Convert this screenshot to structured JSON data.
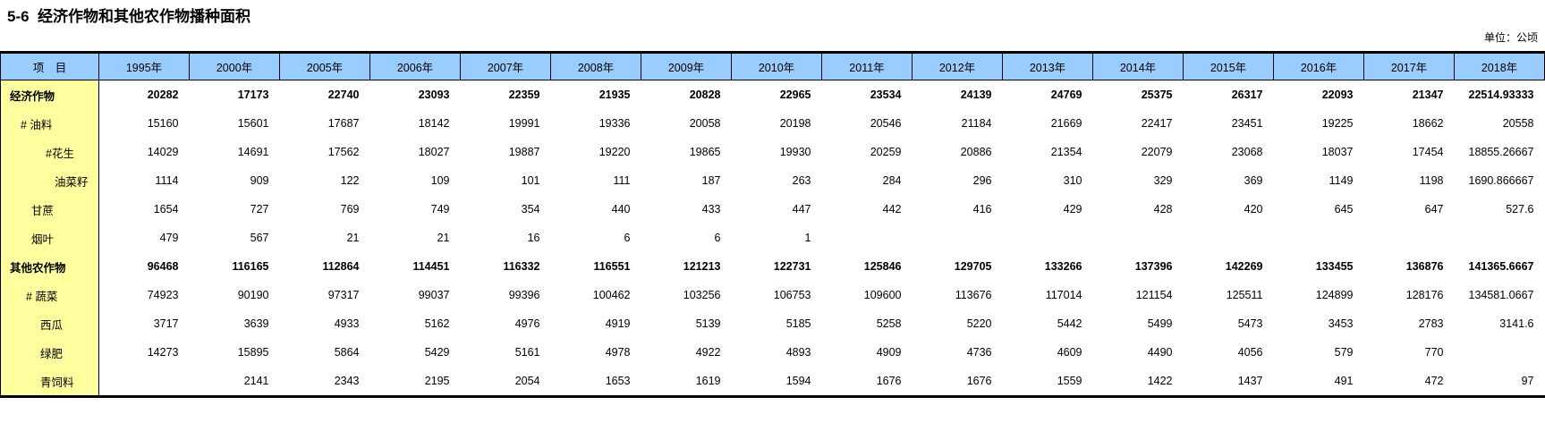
{
  "page": {
    "title": "5-6  经济作物和其他农作物播种面积",
    "unit_label": "单位：公顷"
  },
  "colors": {
    "header_bg": "#99CCFF",
    "label_col_bg": "#FFFFA0",
    "border": "#000000"
  },
  "table": {
    "item_header": "项　目",
    "years": [
      "1995年",
      "2000年",
      "2005年",
      "2006年",
      "2007年",
      "2008年",
      "2009年",
      "2010年",
      "2011年",
      "2012年",
      "2013年",
      "2014年",
      "2015年",
      "2016年",
      "2017年",
      "2018年"
    ],
    "rows": [
      {
        "label": "经济作物",
        "bold": true,
        "indent": 10,
        "values": [
          "20282",
          "17173",
          "22740",
          "23093",
          "22359",
          "21935",
          "20828",
          "22965",
          "23534",
          "24139",
          "24769",
          "25375",
          "26317",
          "22093",
          "21347",
          "22514.93333"
        ]
      },
      {
        "label": "# 油料",
        "bold": false,
        "indent": 22,
        "values": [
          "15160",
          "15601",
          "17687",
          "18142",
          "19991",
          "19336",
          "20058",
          "20198",
          "20546",
          "21184",
          "21669",
          "22417",
          "23451",
          "19225",
          "18662",
          "20558"
        ]
      },
      {
        "label": "#花生",
        "bold": false,
        "indent": 50,
        "values": [
          "14029",
          "14691",
          "17562",
          "18027",
          "19887",
          "19220",
          "19865",
          "19930",
          "20259",
          "20886",
          "21354",
          "22079",
          "23068",
          "18037",
          "17454",
          "18855.26667"
        ]
      },
      {
        "label": "油菜籽",
        "bold": false,
        "indent": 60,
        "values": [
          "1114",
          "909",
          "122",
          "109",
          "101",
          "111",
          "187",
          "263",
          "284",
          "296",
          "310",
          "329",
          "369",
          "1149",
          "1198",
          "1690.866667"
        ]
      },
      {
        "label": "甘蔗",
        "bold": false,
        "indent": 34,
        "values": [
          "1654",
          "727",
          "769",
          "749",
          "354",
          "440",
          "433",
          "447",
          "442",
          "416",
          "429",
          "428",
          "420",
          "645",
          "647",
          "527.6"
        ]
      },
      {
        "label": "烟叶",
        "bold": false,
        "indent": 34,
        "values": [
          "479",
          "567",
          "21",
          "21",
          "16",
          "6",
          "6",
          "1",
          "",
          "",
          "",
          "",
          "",
          "",
          "",
          ""
        ]
      },
      {
        "label": "其他农作物",
        "bold": true,
        "indent": 10,
        "values": [
          "96468",
          "116165",
          "112864",
          "114451",
          "116332",
          "116551",
          "121213",
          "122731",
          "125846",
          "129705",
          "133266",
          "137396",
          "142269",
          "133455",
          "136876",
          "141365.6667"
        ]
      },
      {
        "label": "# 蔬菜",
        "bold": false,
        "indent": 28,
        "values": [
          "74923",
          "90190",
          "97317",
          "99037",
          "99396",
          "100462",
          "103256",
          "106753",
          "109600",
          "113676",
          "117014",
          "121154",
          "125511",
          "124899",
          "128176",
          "134581.0667"
        ]
      },
      {
        "label": "西瓜",
        "bold": false,
        "indent": 44,
        "values": [
          "3717",
          "3639",
          "4933",
          "5162",
          "4976",
          "4919",
          "5139",
          "5185",
          "5258",
          "5220",
          "5442",
          "5499",
          "5473",
          "3453",
          "2783",
          "3141.6"
        ]
      },
      {
        "label": "绿肥",
        "bold": false,
        "indent": 44,
        "values": [
          "14273",
          "15895",
          "5864",
          "5429",
          "5161",
          "4978",
          "4922",
          "4893",
          "4909",
          "4736",
          "4609",
          "4490",
          "4056",
          "579",
          "770",
          ""
        ]
      },
      {
        "label": "青饲料",
        "bold": false,
        "indent": 44,
        "values": [
          "",
          "2141",
          "2343",
          "2195",
          "2054",
          "1653",
          "1619",
          "1594",
          "1676",
          "1676",
          "1559",
          "1422",
          "1437",
          "491",
          "472",
          "97"
        ]
      }
    ]
  }
}
